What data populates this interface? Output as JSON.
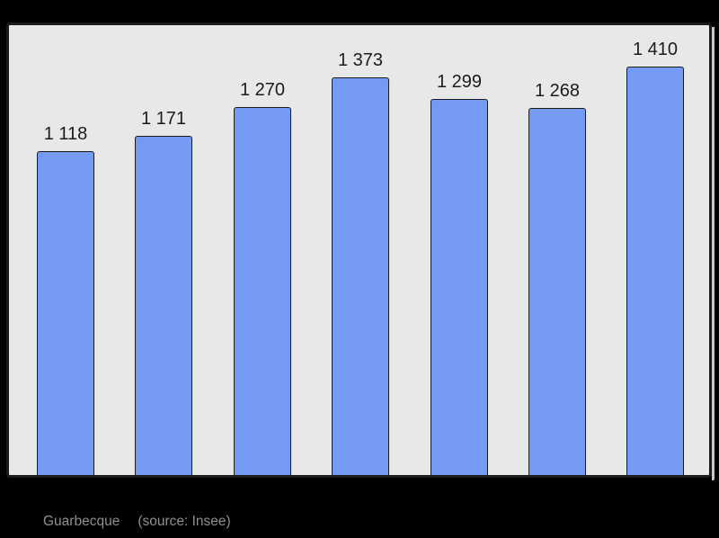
{
  "chart_data": {
    "type": "bar",
    "values": [
      1118,
      1171,
      1270,
      1373,
      1299,
      1268,
      1410
    ],
    "value_labels": [
      "1 118",
      "1 171",
      "1 270",
      "1 373",
      "1 299",
      "1 268",
      "1 410"
    ],
    "title": "",
    "xlabel": "",
    "ylabel": "",
    "ylim": [
      0,
      1553
    ],
    "grid": false,
    "legend": "none",
    "bar_color": "#759af5",
    "bar_border_color": "#1b1b1b",
    "plot_background": "#e8e8e8",
    "page_background": "#000000",
    "value_label_color": "#1b1b1b"
  },
  "caption": {
    "text": "Guarbecque",
    "source": "(source: Insee)",
    "color": "#8f8f8f"
  }
}
